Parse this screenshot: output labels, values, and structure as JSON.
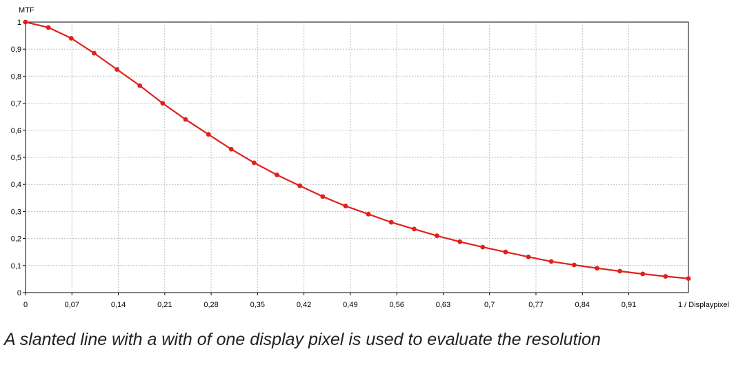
{
  "chart_data": {
    "type": "line",
    "ylabel": "MTF",
    "xlabel": "1 / Displaypixel",
    "x_ticks": [
      "0",
      "0,07",
      "0,14",
      "0,21",
      "0,28",
      "0,35",
      "0,42",
      "0,49",
      "0,56",
      "0,63",
      "0,7",
      "0,77",
      "0,84",
      "0,91"
    ],
    "x_tick_values": [
      0,
      0.07,
      0.14,
      0.21,
      0.28,
      0.35,
      0.42,
      0.49,
      0.56,
      0.63,
      0.7,
      0.77,
      0.84,
      0.91
    ],
    "y_ticks": [
      "0",
      "0,1",
      "0,2",
      "0,3",
      "0,4",
      "0,5",
      "0,6",
      "0,7",
      "0,8",
      "0,9",
      "1"
    ],
    "y_tick_values": [
      0,
      0.1,
      0.2,
      0.3,
      0.4,
      0.5,
      0.6,
      0.7,
      0.8,
      0.9,
      1
    ],
    "xlim": [
      0,
      1.0
    ],
    "ylim": [
      0,
      1.0
    ],
    "grid": true,
    "legend": "none",
    "series": [
      {
        "color": "#e0201c",
        "x": [
          0,
          0.0345,
          0.069,
          0.1035,
          0.138,
          0.1724,
          0.2069,
          0.2414,
          0.2759,
          0.3103,
          0.3448,
          0.3793,
          0.4138,
          0.4483,
          0.4828,
          0.5172,
          0.5517,
          0.5862,
          0.6207,
          0.6552,
          0.6897,
          0.7241,
          0.7586,
          0.7931,
          0.8276,
          0.8621,
          0.8966,
          0.931,
          0.9655,
          1.0
        ],
        "y": [
          1.0,
          0.98,
          0.94,
          0.885,
          0.825,
          0.765,
          0.7,
          0.64,
          0.585,
          0.53,
          0.48,
          0.435,
          0.395,
          0.355,
          0.32,
          0.29,
          0.26,
          0.235,
          0.21,
          0.188,
          0.168,
          0.15,
          0.132,
          0.115,
          0.102,
          0.09,
          0.079,
          0.069,
          0.06,
          0.052
        ]
      }
    ]
  },
  "caption": "A slanted line with a with of one display pixel  is used to evaluate the resolution"
}
